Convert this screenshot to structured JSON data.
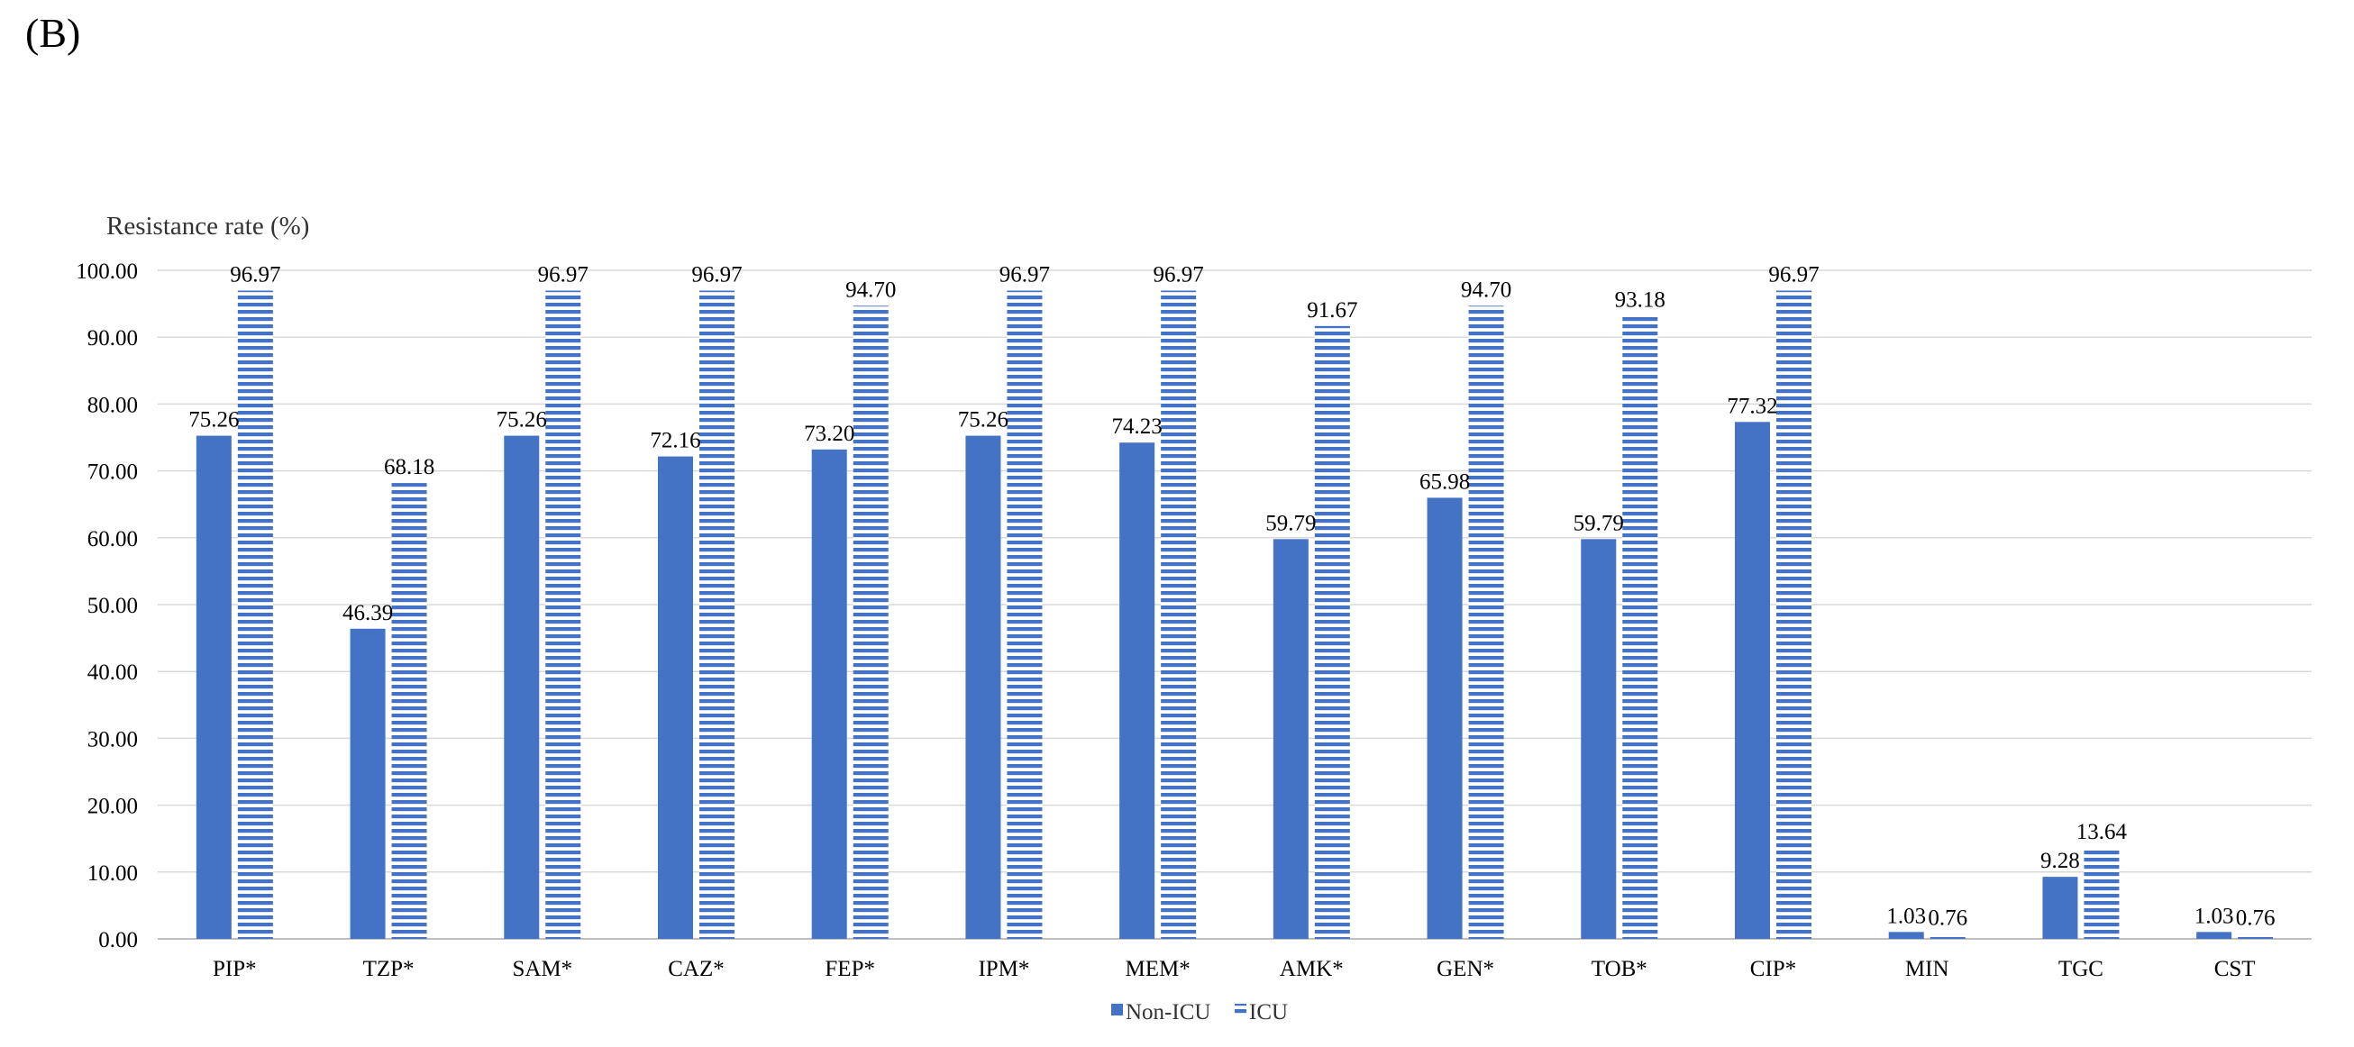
{
  "panel_label": "(B)",
  "chart_data": {
    "type": "bar",
    "title": "",
    "ylabel": "Resistance rate (%)",
    "xlabel": "",
    "ylim": [
      0,
      100
    ],
    "yticks": [
      "0.00",
      "10.00",
      "20.00",
      "30.00",
      "40.00",
      "50.00",
      "60.00",
      "70.00",
      "80.00",
      "90.00",
      "100.00"
    ],
    "grid": true,
    "legend_position": "bottom",
    "categories": [
      "PIP*",
      "TZP*",
      "SAM*",
      "CAZ*",
      "FEP*",
      "IPM*",
      "MEM*",
      "AMK*",
      "GEN*",
      "TOB*",
      "CIP*",
      "MIN",
      "TGC",
      "CST"
    ],
    "series": [
      {
        "name": "Non-ICU",
        "style": "solid",
        "color": "#4472c4",
        "values": [
          75.26,
          46.39,
          75.26,
          72.16,
          73.2,
          75.26,
          74.23,
          59.79,
          65.98,
          59.79,
          77.32,
          1.03,
          9.28,
          1.03
        ],
        "labels": [
          "75.26",
          "46.39",
          "75.26",
          "72.16",
          "73.20",
          "75.26",
          "74.23",
          "59.79",
          "65.98",
          "59.79",
          "77.32",
          "1.03",
          "9.28",
          "1.03"
        ]
      },
      {
        "name": "ICU",
        "style": "horizontal-stripes",
        "color": "#4472c4",
        "values": [
          96.97,
          68.18,
          96.97,
          96.97,
          94.7,
          96.97,
          96.97,
          91.67,
          94.7,
          93.18,
          96.97,
          0.76,
          13.64,
          0.76
        ],
        "labels": [
          "96.97",
          "68.18",
          "96.97",
          "96.97",
          "94.70",
          "96.97",
          "96.97",
          "91.67",
          "94.70",
          "93.18",
          "96.97",
          "0.76",
          "13.64",
          "0.76"
        ]
      }
    ]
  }
}
